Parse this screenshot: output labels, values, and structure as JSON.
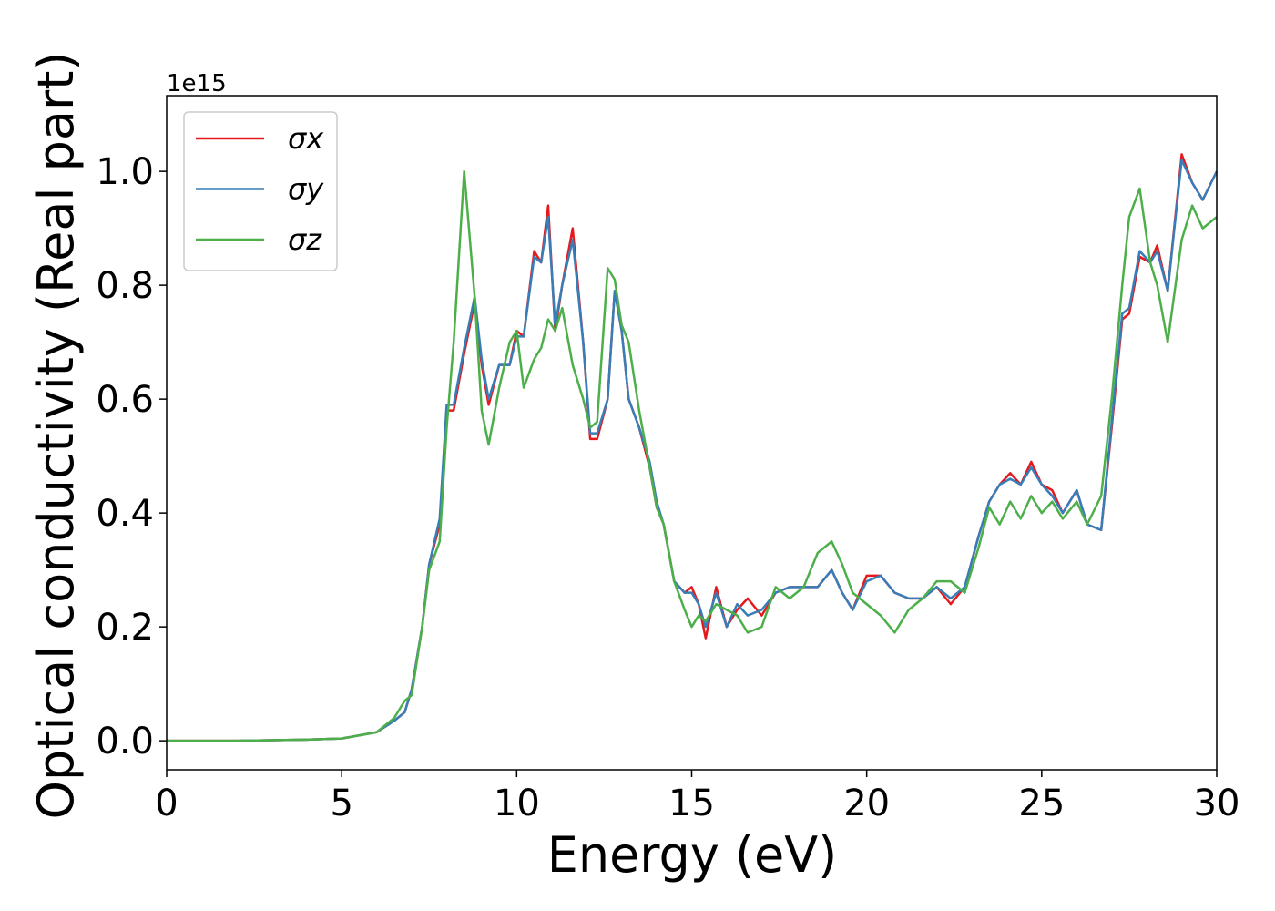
{
  "chart_data": {
    "type": "line",
    "xlabel": "Energy (eV)",
    "ylabel": "Optical conductivity (Real part)",
    "y_offset_text": "1e15",
    "xlim": [
      0,
      30
    ],
    "ylim": [
      -0.051,
      1.133
    ],
    "xticks": [
      0,
      5,
      10,
      15,
      20,
      25,
      30
    ],
    "yticks": [
      {
        "value": 0,
        "label": "0.0"
      },
      0.2,
      0.4,
      0.6,
      0.8,
      {
        "value": 1,
        "label": "1.0"
      }
    ],
    "legend": "upper left",
    "x": [
      0,
      2,
      4,
      5,
      6,
      6.5,
      6.8,
      7.0,
      7.3,
      7.5,
      7.8,
      8.0,
      8.2,
      8.5,
      8.8,
      9.0,
      9.2,
      9.5,
      9.8,
      10.0,
      10.2,
      10.5,
      10.7,
      10.9,
      11.1,
      11.3,
      11.6,
      11.9,
      12.1,
      12.3,
      12.6,
      12.8,
      13.0,
      13.2,
      13.5,
      13.8,
      14.0,
      14.2,
      14.5,
      14.8,
      15.0,
      15.2,
      15.4,
      15.7,
      16.0,
      16.3,
      16.6,
      17.0,
      17.4,
      17.8,
      18.2,
      18.6,
      19.0,
      19.3,
      19.6,
      20.0,
      20.4,
      20.8,
      21.2,
      21.6,
      22.0,
      22.4,
      22.8,
      23.2,
      23.5,
      23.8,
      24.1,
      24.4,
      24.7,
      25.0,
      25.3,
      25.6,
      26.0,
      26.3,
      26.7,
      27.0,
      27.3,
      27.5,
      27.8,
      28.1,
      28.3,
      28.6,
      29.0,
      29.3,
      29.6,
      30.0
    ],
    "series": [
      {
        "name": "σx",
        "color": "#e41a1c",
        "values": [
          0,
          0,
          0.002,
          0.004,
          0.015,
          0.035,
          0.05,
          0.09,
          0.2,
          0.31,
          0.38,
          0.58,
          0.58,
          0.68,
          0.77,
          0.66,
          0.59,
          0.66,
          0.66,
          0.72,
          0.71,
          0.86,
          0.84,
          0.94,
          0.72,
          0.8,
          0.9,
          0.7,
          0.53,
          0.53,
          0.6,
          0.79,
          0.72,
          0.6,
          0.55,
          0.48,
          0.41,
          0.38,
          0.28,
          0.26,
          0.27,
          0.24,
          0.18,
          0.27,
          0.2,
          0.23,
          0.25,
          0.22,
          0.26,
          0.27,
          0.27,
          0.27,
          0.3,
          0.26,
          0.23,
          0.29,
          0.29,
          0.26,
          0.25,
          0.25,
          0.27,
          0.24,
          0.27,
          0.36,
          0.42,
          0.45,
          0.47,
          0.45,
          0.49,
          0.45,
          0.44,
          0.4,
          0.44,
          0.38,
          0.37,
          0.55,
          0.74,
          0.75,
          0.85,
          0.84,
          0.87,
          0.79,
          1.03,
          0.98,
          0.95,
          1.0
        ]
      },
      {
        "name": "σy",
        "color": "#377eb8",
        "values": [
          0,
          0,
          0.002,
          0.004,
          0.015,
          0.035,
          0.05,
          0.09,
          0.2,
          0.31,
          0.39,
          0.59,
          0.59,
          0.69,
          0.78,
          0.67,
          0.6,
          0.66,
          0.66,
          0.71,
          0.71,
          0.85,
          0.84,
          0.92,
          0.73,
          0.8,
          0.88,
          0.7,
          0.54,
          0.54,
          0.6,
          0.79,
          0.72,
          0.6,
          0.55,
          0.49,
          0.42,
          0.38,
          0.28,
          0.26,
          0.26,
          0.24,
          0.2,
          0.26,
          0.2,
          0.24,
          0.22,
          0.23,
          0.26,
          0.27,
          0.27,
          0.27,
          0.3,
          0.26,
          0.23,
          0.28,
          0.29,
          0.26,
          0.25,
          0.25,
          0.27,
          0.25,
          0.27,
          0.36,
          0.42,
          0.45,
          0.46,
          0.45,
          0.48,
          0.45,
          0.43,
          0.4,
          0.44,
          0.38,
          0.37,
          0.56,
          0.75,
          0.76,
          0.86,
          0.84,
          0.86,
          0.79,
          1.02,
          0.98,
          0.95,
          1.0
        ]
      },
      {
        "name": "σz",
        "color": "#4daf4a",
        "values": [
          0,
          0,
          0.002,
          0.004,
          0.015,
          0.04,
          0.07,
          0.08,
          0.2,
          0.3,
          0.35,
          0.55,
          0.7,
          1.0,
          0.78,
          0.58,
          0.52,
          0.62,
          0.7,
          0.72,
          0.62,
          0.67,
          0.69,
          0.74,
          0.72,
          0.76,
          0.66,
          0.6,
          0.55,
          0.56,
          0.83,
          0.81,
          0.73,
          0.7,
          0.58,
          0.48,
          0.41,
          0.38,
          0.28,
          0.23,
          0.2,
          0.22,
          0.21,
          0.24,
          0.23,
          0.22,
          0.19,
          0.2,
          0.27,
          0.25,
          0.27,
          0.33,
          0.35,
          0.31,
          0.26,
          0.24,
          0.22,
          0.19,
          0.23,
          0.25,
          0.28,
          0.28,
          0.26,
          0.34,
          0.41,
          0.38,
          0.42,
          0.39,
          0.43,
          0.4,
          0.42,
          0.39,
          0.42,
          0.38,
          0.43,
          0.6,
          0.8,
          0.92,
          0.97,
          0.84,
          0.8,
          0.7,
          0.88,
          0.94,
          0.9,
          0.92
        ]
      }
    ]
  }
}
